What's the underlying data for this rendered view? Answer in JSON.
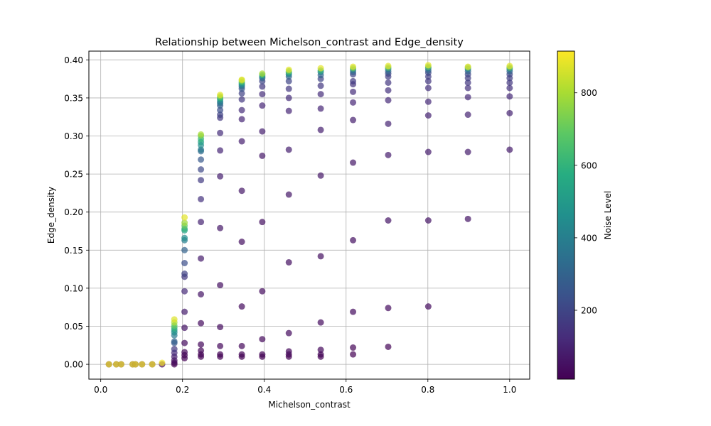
{
  "chart_data": {
    "type": "scatter",
    "title": "Relationship between Michelson_contrast and Edge_density",
    "xlabel": "Michelson_contrast",
    "ylabel": "Edge_density",
    "xlim": [
      -0.029,
      1.049
    ],
    "ylim": [
      -0.0195,
      0.4115
    ],
    "xticks": [
      0.0,
      0.2,
      0.4,
      0.6,
      0.8,
      1.0
    ],
    "yticks": [
      0.0,
      0.05,
      0.1,
      0.15,
      0.2,
      0.25,
      0.3,
      0.35,
      0.4
    ],
    "grid": true,
    "colormap": "viridis",
    "marker_alpha": 0.7,
    "colorbar": {
      "label": "Noise Level",
      "range": [
        10,
        915
      ],
      "ticks": [
        200,
        400,
        600,
        800
      ]
    },
    "columns": [
      {
        "x": 0.02,
        "points": [
          [
            0.0,
            10
          ],
          [
            0.0,
            900
          ]
        ]
      },
      {
        "x": 0.038,
        "points": [
          [
            0.0,
            10
          ],
          [
            0.0,
            900
          ]
        ]
      },
      {
        "x": 0.05,
        "points": [
          [
            0.0,
            10
          ],
          [
            0.0,
            900
          ]
        ]
      },
      {
        "x": 0.078,
        "points": [
          [
            0.0,
            10
          ],
          [
            0.0,
            900
          ]
        ]
      },
      {
        "x": 0.085,
        "points": [
          [
            0.0,
            10
          ],
          [
            0.0,
            900
          ]
        ]
      },
      {
        "x": 0.101,
        "points": [
          [
            0.0,
            10
          ],
          [
            0.0,
            900
          ]
        ]
      },
      {
        "x": 0.126,
        "points": [
          [
            0.0,
            10
          ],
          [
            0.0,
            900
          ]
        ]
      },
      {
        "x": 0.15,
        "points": [
          [
            0.0,
            10
          ],
          [
            0.002,
            900
          ]
        ]
      },
      {
        "x": 0.18,
        "points": [
          [
            0.0,
            10
          ],
          [
            0.002,
            20
          ],
          [
            0.005,
            40
          ],
          [
            0.01,
            80
          ],
          [
            0.015,
            120
          ],
          [
            0.02,
            160
          ],
          [
            0.028,
            250
          ],
          [
            0.03,
            300
          ],
          [
            0.038,
            380
          ],
          [
            0.042,
            450
          ],
          [
            0.045,
            500
          ],
          [
            0.048,
            600
          ],
          [
            0.051,
            700
          ],
          [
            0.055,
            800
          ],
          [
            0.059,
            870
          ]
        ]
      },
      {
        "x": 0.205,
        "points": [
          [
            0.008,
            10
          ],
          [
            0.012,
            15
          ],
          [
            0.016,
            25
          ],
          [
            0.028,
            40
          ],
          [
            0.048,
            60
          ],
          [
            0.069,
            80
          ],
          [
            0.096,
            120
          ],
          [
            0.115,
            160
          ],
          [
            0.119,
            190
          ],
          [
            0.133,
            230
          ],
          [
            0.15,
            300
          ],
          [
            0.163,
            400
          ],
          [
            0.166,
            450
          ],
          [
            0.176,
            530
          ],
          [
            0.178,
            600
          ],
          [
            0.182,
            700
          ],
          [
            0.186,
            780
          ],
          [
            0.193,
            880
          ]
        ]
      },
      {
        "x": 0.245,
        "points": [
          [
            0.01,
            10
          ],
          [
            0.013,
            15
          ],
          [
            0.018,
            25
          ],
          [
            0.026,
            30
          ],
          [
            0.054,
            40
          ],
          [
            0.092,
            60
          ],
          [
            0.139,
            80
          ],
          [
            0.187,
            100
          ],
          [
            0.217,
            140
          ],
          [
            0.242,
            170
          ],
          [
            0.256,
            210
          ],
          [
            0.269,
            260
          ],
          [
            0.28,
            320
          ],
          [
            0.282,
            380
          ],
          [
            0.288,
            450
          ],
          [
            0.292,
            520
          ],
          [
            0.296,
            600
          ],
          [
            0.3,
            700
          ],
          [
            0.302,
            800
          ]
        ]
      },
      {
        "x": 0.292,
        "points": [
          [
            0.01,
            10
          ],
          [
            0.013,
            20
          ],
          [
            0.024,
            30
          ],
          [
            0.049,
            40
          ],
          [
            0.104,
            50
          ],
          [
            0.179,
            70
          ],
          [
            0.247,
            90
          ],
          [
            0.281,
            110
          ],
          [
            0.304,
            130
          ],
          [
            0.324,
            160
          ],
          [
            0.328,
            190
          ],
          [
            0.334,
            230
          ],
          [
            0.34,
            280
          ],
          [
            0.343,
            330
          ],
          [
            0.345,
            400
          ],
          [
            0.348,
            480
          ],
          [
            0.35,
            600
          ],
          [
            0.352,
            750
          ],
          [
            0.354,
            880
          ]
        ]
      },
      {
        "x": 0.345,
        "points": [
          [
            0.01,
            10
          ],
          [
            0.013,
            20
          ],
          [
            0.024,
            30
          ],
          [
            0.076,
            40
          ],
          [
            0.161,
            50
          ],
          [
            0.228,
            70
          ],
          [
            0.293,
            90
          ],
          [
            0.322,
            110
          ],
          [
            0.334,
            130
          ],
          [
            0.348,
            160
          ],
          [
            0.356,
            190
          ],
          [
            0.362,
            250
          ],
          [
            0.365,
            320
          ],
          [
            0.367,
            400
          ],
          [
            0.369,
            500
          ],
          [
            0.371,
            650
          ],
          [
            0.373,
            800
          ],
          [
            0.374,
            880
          ]
        ]
      },
      {
        "x": 0.395,
        "points": [
          [
            0.01,
            10
          ],
          [
            0.013,
            20
          ],
          [
            0.033,
            30
          ],
          [
            0.096,
            40
          ],
          [
            0.187,
            50
          ],
          [
            0.274,
            70
          ],
          [
            0.306,
            90
          ],
          [
            0.34,
            110
          ],
          [
            0.355,
            130
          ],
          [
            0.365,
            160
          ],
          [
            0.372,
            200
          ],
          [
            0.376,
            300
          ],
          [
            0.378,
            400
          ],
          [
            0.38,
            600
          ],
          [
            0.382,
            800
          ]
        ]
      },
      {
        "x": 0.46,
        "points": [
          [
            0.01,
            10
          ],
          [
            0.013,
            20
          ],
          [
            0.017,
            30
          ],
          [
            0.041,
            40
          ],
          [
            0.134,
            50
          ],
          [
            0.223,
            70
          ],
          [
            0.282,
            90
          ],
          [
            0.333,
            110
          ],
          [
            0.35,
            130
          ],
          [
            0.362,
            160
          ],
          [
            0.372,
            200
          ],
          [
            0.378,
            300
          ],
          [
            0.381,
            400
          ],
          [
            0.383,
            500
          ],
          [
            0.385,
            700
          ],
          [
            0.387,
            880
          ]
        ]
      },
      {
        "x": 0.538,
        "points": [
          [
            0.01,
            10
          ],
          [
            0.013,
            20
          ],
          [
            0.019,
            30
          ],
          [
            0.055,
            40
          ],
          [
            0.142,
            50
          ],
          [
            0.248,
            70
          ],
          [
            0.308,
            90
          ],
          [
            0.336,
            110
          ],
          [
            0.355,
            130
          ],
          [
            0.366,
            160
          ],
          [
            0.375,
            200
          ],
          [
            0.38,
            300
          ],
          [
            0.384,
            400
          ],
          [
            0.386,
            600
          ],
          [
            0.389,
            880
          ]
        ]
      },
      {
        "x": 0.617,
        "points": [
          [
            0.013,
            10
          ],
          [
            0.022,
            20
          ],
          [
            0.069,
            40
          ],
          [
            0.163,
            50
          ],
          [
            0.265,
            70
          ],
          [
            0.321,
            90
          ],
          [
            0.344,
            110
          ],
          [
            0.358,
            130
          ],
          [
            0.368,
            150
          ],
          [
            0.372,
            170
          ],
          [
            0.381,
            200
          ],
          [
            0.384,
            300
          ],
          [
            0.387,
            400
          ],
          [
            0.389,
            700
          ],
          [
            0.391,
            880
          ]
        ]
      },
      {
        "x": 0.703,
        "points": [
          [
            0.023,
            20
          ],
          [
            0.074,
            40
          ],
          [
            0.189,
            60
          ],
          [
            0.275,
            80
          ],
          [
            0.316,
            100
          ],
          [
            0.347,
            120
          ],
          [
            0.36,
            140
          ],
          [
            0.37,
            160
          ],
          [
            0.378,
            180
          ],
          [
            0.382,
            200
          ],
          [
            0.385,
            300
          ],
          [
            0.388,
            400
          ],
          [
            0.39,
            700
          ],
          [
            0.392,
            880
          ]
        ]
      },
      {
        "x": 0.801,
        "points": [
          [
            0.076,
            40
          ],
          [
            0.189,
            60
          ],
          [
            0.279,
            80
          ],
          [
            0.327,
            100
          ],
          [
            0.345,
            120
          ],
          [
            0.363,
            140
          ],
          [
            0.372,
            160
          ],
          [
            0.378,
            180
          ],
          [
            0.383,
            200
          ],
          [
            0.386,
            300
          ],
          [
            0.389,
            400
          ],
          [
            0.391,
            700
          ],
          [
            0.393,
            880
          ]
        ]
      },
      {
        "x": 0.898,
        "points": [
          [
            0.191,
            60
          ],
          [
            0.279,
            80
          ],
          [
            0.328,
            100
          ],
          [
            0.351,
            120
          ],
          [
            0.363,
            140
          ],
          [
            0.37,
            160
          ],
          [
            0.376,
            180
          ],
          [
            0.381,
            200
          ],
          [
            0.385,
            300
          ],
          [
            0.388,
            400
          ],
          [
            0.39,
            700
          ],
          [
            0.391,
            880
          ]
        ]
      },
      {
        "x": 1.0,
        "points": [
          [
            0.282,
            80
          ],
          [
            0.33,
            100
          ],
          [
            0.352,
            120
          ],
          [
            0.363,
            140
          ],
          [
            0.37,
            160
          ],
          [
            0.376,
            180
          ],
          [
            0.381,
            200
          ],
          [
            0.385,
            300
          ],
          [
            0.388,
            400
          ],
          [
            0.39,
            700
          ],
          [
            0.392,
            880
          ]
        ]
      }
    ]
  }
}
